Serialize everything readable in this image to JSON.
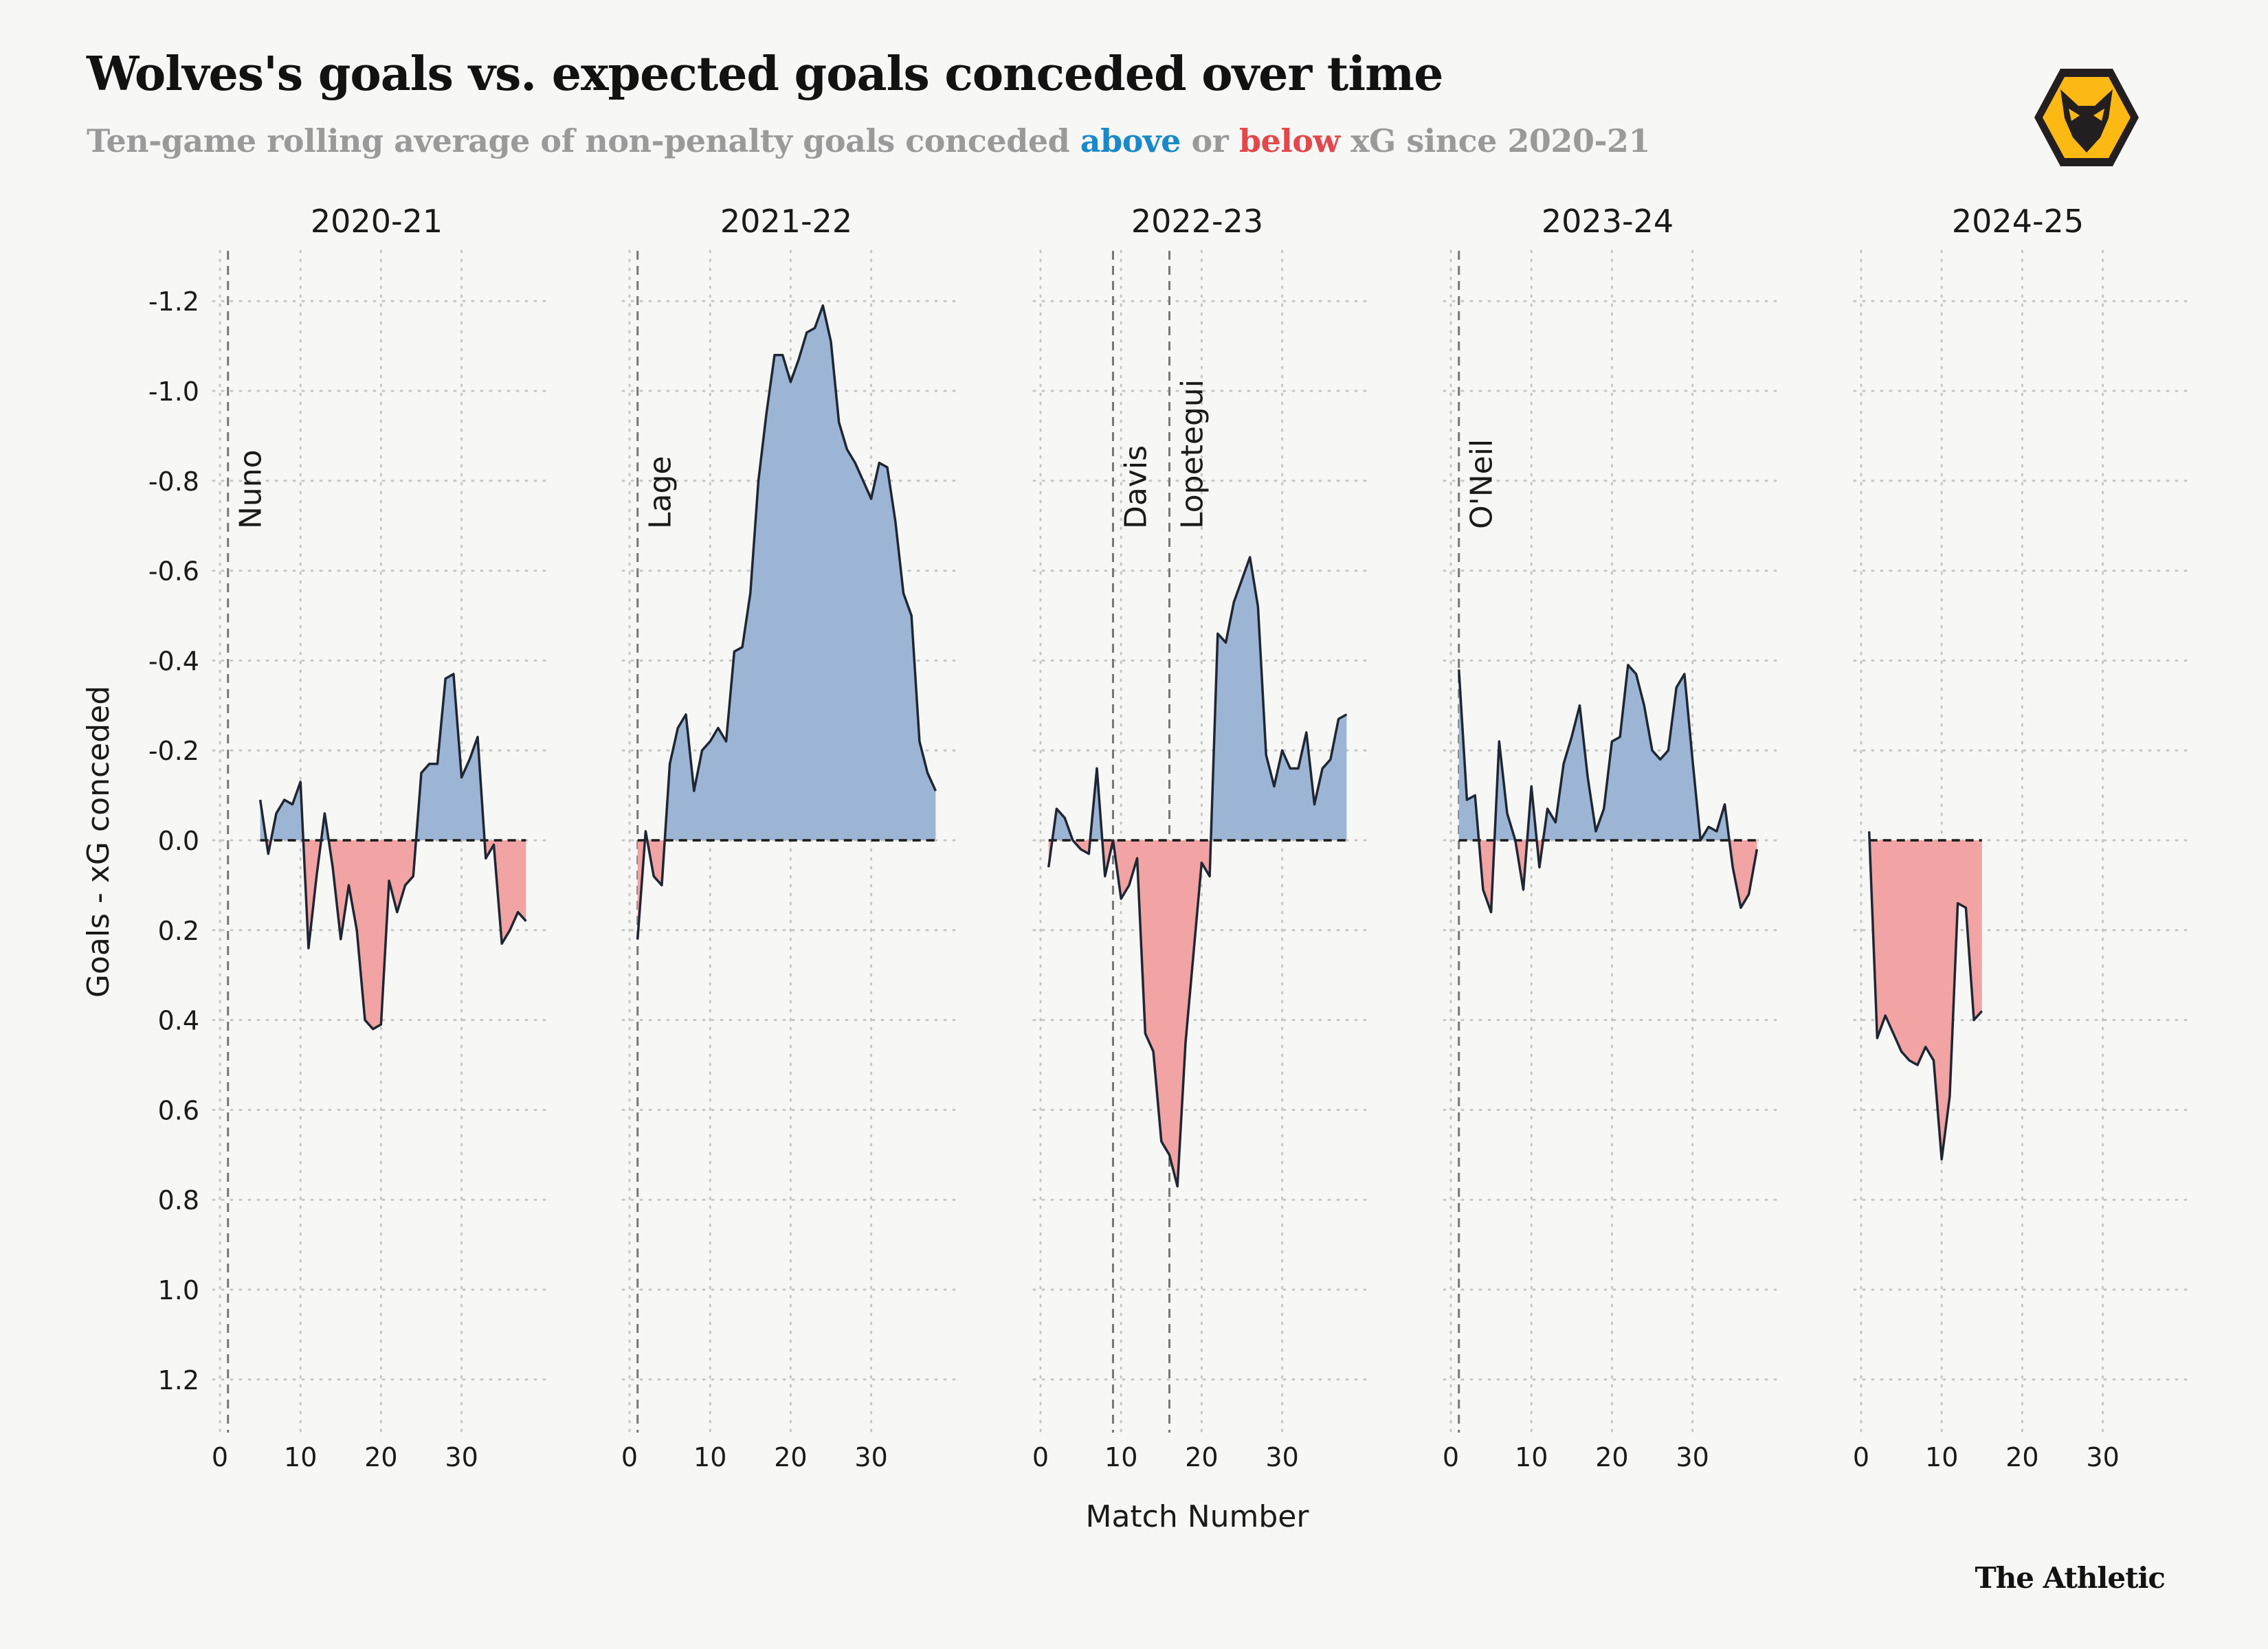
{
  "title": "Wolves's goals vs. expected goals conceded over time",
  "subtitle": {
    "prefix": "Ten-game rolling average of non-penalty goals conceded ",
    "above": "above",
    "mid": " or ",
    "below": "below",
    "suffix": " xG since 2020-21"
  },
  "brand": "The Athletic",
  "colors": {
    "above": "#1a88c9",
    "below": "#e3474c",
    "area_above": "#9db5d4",
    "area_below": "#f2a3a3",
    "line": "#1f2633",
    "logo": "#fdb913"
  },
  "logo_icon": "wolf-head-icon",
  "chart_data": {
    "type": "area",
    "xlabel": "Match Number",
    "ylabel": "Goals - xG conceded",
    "ylim": [
      -1.3,
      1.3
    ],
    "y_inverted": true,
    "yticks": [
      -1.2,
      -1.0,
      -0.8,
      -0.6,
      -0.4,
      -0.2,
      0.0,
      0.2,
      0.4,
      0.6,
      0.8,
      1.0,
      1.2
    ],
    "ytick_labels": [
      "-1.2",
      "-1.0",
      "-0.8",
      "-0.6",
      "-0.4",
      "-0.2",
      "0.0",
      "0.2",
      "0.4",
      "0.6",
      "0.8",
      "1.0",
      "1.2"
    ],
    "xlim": [
      0,
      38
    ],
    "xticks": [
      0,
      10,
      20,
      30
    ],
    "grid": true,
    "panels": [
      {
        "season": "2020-21",
        "managers": [
          {
            "name": "Nuno",
            "match": 1
          }
        ],
        "x": [
          5,
          6,
          7,
          8,
          9,
          10,
          11,
          12,
          13,
          14,
          15,
          16,
          17,
          18,
          19,
          20,
          21,
          22,
          23,
          24,
          25,
          26,
          27,
          28,
          29,
          30,
          31,
          32,
          33,
          34,
          35,
          36,
          37,
          38
        ],
        "values": [
          -0.09,
          0.03,
          -0.06,
          -0.09,
          -0.08,
          -0.13,
          0.24,
          0.08,
          -0.06,
          0.06,
          0.22,
          0.1,
          0.2,
          0.4,
          0.42,
          0.41,
          0.09,
          0.16,
          0.1,
          0.08,
          -0.15,
          -0.17,
          -0.17,
          -0.36,
          -0.37,
          -0.14,
          -0.18,
          -0.23,
          0.04,
          0.01,
          0.23,
          0.2,
          0.16,
          0.18
        ]
      },
      {
        "season": "2021-22",
        "managers": [
          {
            "name": "Lage",
            "match": 1
          }
        ],
        "x": [
          1,
          2,
          3,
          4,
          5,
          6,
          7,
          8,
          9,
          10,
          11,
          12,
          13,
          14,
          15,
          16,
          17,
          18,
          19,
          20,
          21,
          22,
          23,
          24,
          25,
          26,
          27,
          28,
          29,
          30,
          31,
          32,
          33,
          34,
          35,
          36,
          37,
          38
        ],
        "values": [
          0.22,
          -0.02,
          0.08,
          0.1,
          -0.17,
          -0.25,
          -0.28,
          -0.11,
          -0.2,
          -0.22,
          -0.25,
          -0.22,
          -0.42,
          -0.43,
          -0.55,
          -0.8,
          -0.95,
          -1.08,
          -1.08,
          -1.02,
          -1.07,
          -1.13,
          -1.14,
          -1.19,
          -1.11,
          -0.93,
          -0.87,
          -0.84,
          -0.8,
          -0.76,
          -0.84,
          -0.83,
          -0.71,
          -0.55,
          -0.5,
          -0.22,
          -0.15,
          -0.11
        ]
      },
      {
        "season": "2022-23",
        "managers": [
          {
            "name": "Davis",
            "match": 9
          },
          {
            "name": "Lopetegui",
            "match": 16
          }
        ],
        "x": [
          1,
          2,
          3,
          4,
          5,
          6,
          7,
          8,
          9,
          10,
          11,
          12,
          13,
          14,
          15,
          16,
          17,
          18,
          19,
          20,
          21,
          22,
          23,
          24,
          25,
          26,
          27,
          28,
          29,
          30,
          31,
          32,
          33,
          34,
          35,
          36,
          37,
          38
        ],
        "values": [
          0.06,
          -0.07,
          -0.05,
          0.0,
          0.02,
          0.03,
          -0.16,
          0.08,
          0.0,
          0.13,
          0.1,
          0.04,
          0.43,
          0.47,
          0.67,
          0.7,
          0.77,
          0.45,
          0.25,
          0.05,
          0.08,
          -0.46,
          -0.44,
          -0.53,
          -0.58,
          -0.63,
          -0.52,
          -0.19,
          -0.12,
          -0.2,
          -0.16,
          -0.16,
          -0.24,
          -0.08,
          -0.16,
          -0.18,
          -0.27,
          -0.28
        ]
      },
      {
        "season": "2023-24",
        "managers": [
          {
            "name": "O'Neil",
            "match": 1
          }
        ],
        "x": [
          1,
          2,
          3,
          4,
          5,
          6,
          7,
          8,
          9,
          10,
          11,
          12,
          13,
          14,
          15,
          16,
          17,
          18,
          19,
          20,
          21,
          22,
          23,
          24,
          25,
          26,
          27,
          28,
          29,
          30,
          31,
          32,
          33,
          34,
          35,
          36,
          37,
          38
        ],
        "values": [
          -0.38,
          -0.09,
          -0.1,
          0.11,
          0.16,
          -0.22,
          -0.06,
          0.0,
          0.11,
          -0.12,
          0.06,
          -0.07,
          -0.04,
          -0.17,
          -0.23,
          -0.3,
          -0.14,
          -0.02,
          -0.07,
          -0.22,
          -0.23,
          -0.39,
          -0.37,
          -0.3,
          -0.2,
          -0.18,
          -0.2,
          -0.34,
          -0.37,
          -0.18,
          0.0,
          -0.03,
          -0.02,
          -0.08,
          0.06,
          0.15,
          0.12,
          0.02
        ]
      },
      {
        "season": "2024-25",
        "managers": [],
        "x": [
          1,
          2,
          3,
          4,
          5,
          6,
          7,
          8,
          9,
          10,
          11,
          12,
          13,
          14,
          15
        ],
        "values": [
          -0.02,
          0.44,
          0.39,
          0.43,
          0.47,
          0.49,
          0.5,
          0.46,
          0.49,
          0.71,
          0.57,
          0.14,
          0.15,
          0.4,
          0.38
        ]
      }
    ]
  }
}
